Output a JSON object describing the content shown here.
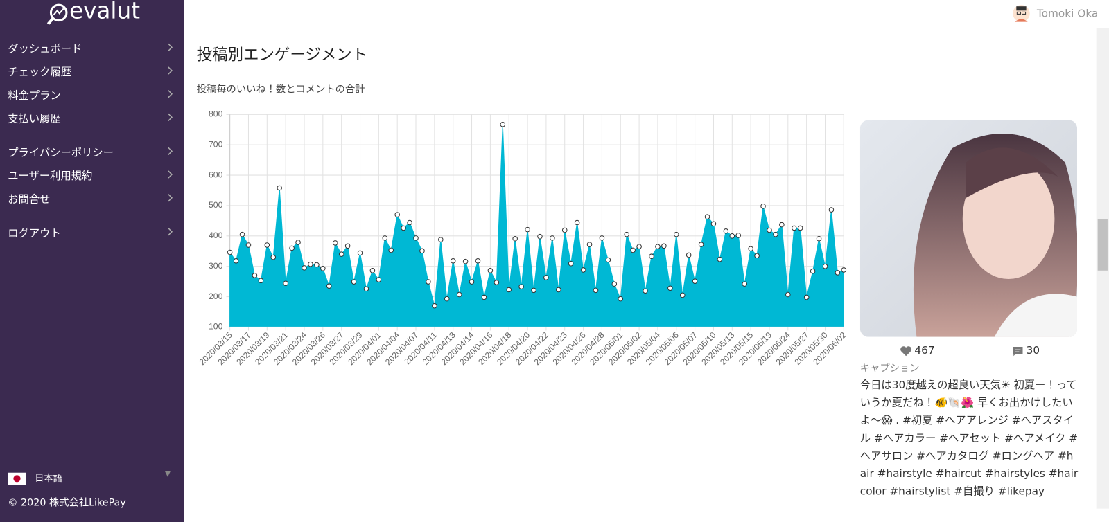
{
  "sidebar": {
    "logo": "evalut",
    "menu": [
      "ダッシュボード",
      "チェック履歴",
      "料金プラン",
      "支払い履歴",
      "プライバシーポリシー",
      "ユーザー利用規約",
      "お問合せ",
      "ログアウト"
    ],
    "language": "日本語",
    "copyright": "© 2020 株式会社LikePay"
  },
  "header": {
    "user": "Tomoki Oka"
  },
  "section": {
    "title": "投稿別エンゲージメント",
    "subtitle": "投稿毎のいいね！数とコメントの合計"
  },
  "chart_data": {
    "type": "area",
    "color": "#00b8d4",
    "grid": true,
    "ylim": [
      100,
      800
    ],
    "yticks": [
      100,
      200,
      300,
      400,
      500,
      600,
      700,
      800
    ],
    "categories": [
      "2020/03/15",
      null,
      null,
      "2020/03/17",
      null,
      null,
      "2020/03/19",
      null,
      null,
      "2020/03/21",
      null,
      null,
      "2020/03/24",
      null,
      null,
      "2020/03/26",
      null,
      null,
      "2020/03/27",
      null,
      null,
      "2020/03/29",
      null,
      null,
      "2020/04/01",
      null,
      null,
      "2020/04/04",
      null,
      null,
      "2020/04/07",
      null,
      null,
      "2020/04/11",
      null,
      null,
      "2020/04/13",
      null,
      null,
      "2020/04/14",
      null,
      null,
      "2020/04/16",
      null,
      null,
      "2020/04/18",
      null,
      null,
      "2020/04/20",
      null,
      null,
      "2020/04/22",
      null,
      null,
      "2020/04/23",
      null,
      null,
      "2020/04/26",
      null,
      null,
      "2020/04/28",
      null,
      null,
      "2020/05/01",
      null,
      null,
      "2020/05/02",
      null,
      null,
      "2020/05/04",
      null,
      null,
      "2020/05/06",
      null,
      null,
      "2020/05/07",
      null,
      null,
      "2020/05/10",
      null,
      null,
      "2020/05/13",
      null,
      null,
      "2020/05/15",
      null,
      null,
      "2020/05/19",
      null,
      null,
      "2020/05/24",
      null,
      null,
      "2020/05/27",
      null,
      null,
      "2020/05/30",
      null,
      null,
      "2020/06/02"
    ],
    "values": [
      346,
      318,
      405,
      370,
      270,
      253,
      370,
      330,
      558,
      244,
      360,
      379,
      295,
      307,
      305,
      293,
      235,
      377,
      340,
      367,
      249,
      344,
      226,
      286,
      256,
      393,
      353,
      470,
      426,
      444,
      393,
      351,
      249,
      170,
      388,
      193,
      318,
      207,
      316,
      249,
      318,
      198,
      286,
      247,
      767,
      223,
      391,
      233,
      421,
      221,
      398,
      263,
      393,
      223,
      419,
      309,
      444,
      288,
      372,
      221,
      393,
      321,
      242,
      193,
      405,
      353,
      365,
      219,
      333,
      365,
      367,
      228,
      405,
      205,
      337,
      251,
      372,
      463,
      440,
      323,
      416,
      400,
      402,
      242,
      358,
      335,
      498,
      419,
      405,
      437,
      207,
      426,
      426,
      198,
      284,
      391,
      300,
      486,
      279,
      288
    ]
  },
  "post": {
    "likes": 467,
    "comments": 30,
    "caption_label": "キャプション",
    "caption": "今日は30度越えの超良い天気☀ 初夏ー！っていうか夏だね！🐠🐚🌺 早くお出かけしたいよ〜😱 . #初夏 #ヘアアレンジ #ヘアスタイル #ヘアカラー #ヘアセット #ヘアメイク #ヘアサロン #ヘアカタログ #ロングヘア #hair #hairstyle #haircut #hairstyles #haircolor #hairstylist #自撮り #likepay"
  }
}
